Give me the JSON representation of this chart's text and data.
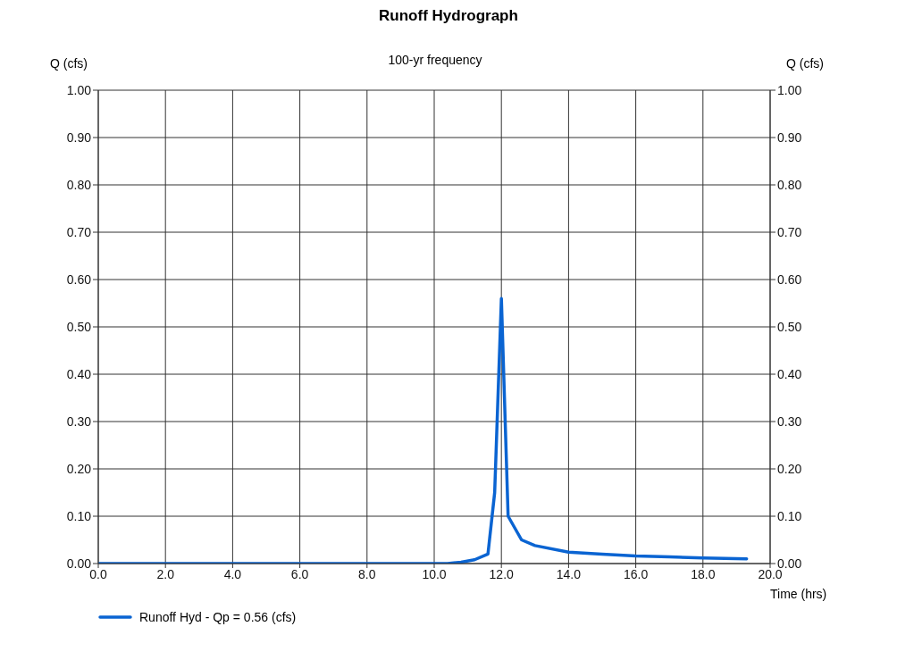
{
  "chart_data": {
    "type": "line",
    "title": "Runoff Hydrograph",
    "subtitle": "100-yr frequency",
    "xlabel": "Time (hrs)",
    "ylabel": "Q (cfs)",
    "y2label": "Q (cfs)",
    "x": [
      0,
      2,
      4,
      6,
      8,
      10,
      10.4,
      10.8,
      11.2,
      11.6,
      11.8,
      12.0,
      12.2,
      12.6,
      13.0,
      14.0,
      15.0,
      16.0,
      17.0,
      18.0,
      19.3
    ],
    "series": [
      {
        "name": "Runoff Hyd - Qp = 0.56 (cfs)",
        "color": "#0a64d2",
        "values": [
          0,
          0,
          0,
          0,
          0,
          0,
          0,
          0.003,
          0.008,
          0.02,
          0.15,
          0.56,
          0.1,
          0.05,
          0.038,
          0.024,
          0.02,
          0.016,
          0.014,
          0.012,
          0.01
        ]
      }
    ],
    "xlim": [
      0,
      20
    ],
    "xticks": [
      {
        "value": 0,
        "label": "0.0"
      },
      {
        "value": 2,
        "label": "2.0"
      },
      {
        "value": 4,
        "label": "4.0"
      },
      {
        "value": 6,
        "label": "6.0"
      },
      {
        "value": 8,
        "label": "8.0"
      },
      {
        "value": 10,
        "label": "10.0"
      },
      {
        "value": 12,
        "label": "12.0"
      },
      {
        "value": 14,
        "label": "14.0"
      },
      {
        "value": 16,
        "label": "16.0"
      },
      {
        "value": 18,
        "label": "18.0"
      },
      {
        "value": 20,
        "label": "20.0"
      }
    ],
    "ylim": [
      0,
      1
    ],
    "yticks": [
      {
        "value": 0,
        "label": "0.00"
      },
      {
        "value": 0.1,
        "label": "0.10"
      },
      {
        "value": 0.2,
        "label": "0.20"
      },
      {
        "value": 0.3,
        "label": "0.30"
      },
      {
        "value": 0.4,
        "label": "0.40"
      },
      {
        "value": 0.5,
        "label": "0.50"
      },
      {
        "value": 0.6,
        "label": "0.60"
      },
      {
        "value": 0.7,
        "label": "0.70"
      },
      {
        "value": 0.8,
        "label": "0.80"
      },
      {
        "value": 0.9,
        "label": "0.90"
      },
      {
        "value": 1,
        "label": "1.00"
      }
    ],
    "y2lim": [
      0,
      1
    ],
    "y2ticks": [
      {
        "value": 0,
        "label": "0.00"
      },
      {
        "value": 0.1,
        "label": "0.10"
      },
      {
        "value": 0.2,
        "label": "0.20"
      },
      {
        "value": 0.3,
        "label": "0.30"
      },
      {
        "value": 0.4,
        "label": "0.40"
      },
      {
        "value": 0.5,
        "label": "0.50"
      },
      {
        "value": 0.6,
        "label": "0.60"
      },
      {
        "value": 0.7,
        "label": "0.70"
      },
      {
        "value": 0.8,
        "label": "0.80"
      },
      {
        "value": 0.9,
        "label": "0.90"
      },
      {
        "value": 1,
        "label": "1.00"
      }
    ],
    "grid": true,
    "legend": "bottom left",
    "marker": "none",
    "line_style": "solid"
  }
}
